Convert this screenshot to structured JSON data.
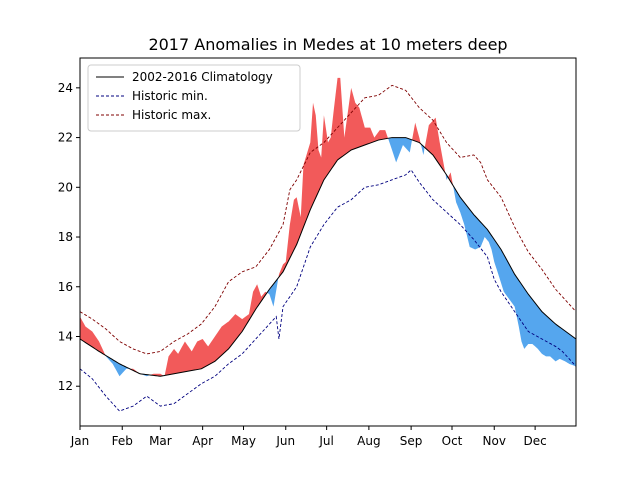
{
  "chart_data": {
    "type": "area",
    "title": "2017 Anomalies in Medes at 10 meters deep",
    "xlabel": "",
    "ylabel": "",
    "x_unit": "day of year",
    "xlim": [
      1,
      365
    ],
    "ylim": [
      10.4,
      25.2
    ],
    "x_ticks": [
      {
        "label": "Jan",
        "day": 1
      },
      {
        "label": "Feb",
        "day": 32
      },
      {
        "label": "Mar",
        "day": 60
      },
      {
        "label": "Apr",
        "day": 91
      },
      {
        "label": "May",
        "day": 121
      },
      {
        "label": "Jun",
        "day": 152
      },
      {
        "label": "Jul",
        "day": 182
      },
      {
        "label": "Aug",
        "day": 213
      },
      {
        "label": "Sep",
        "day": 244
      },
      {
        "label": "Oct",
        "day": 274
      },
      {
        "label": "Nov",
        "day": 305
      },
      {
        "label": "Dec",
        "day": 335
      }
    ],
    "y_ticks": [
      12,
      14,
      16,
      18,
      20,
      22,
      24
    ],
    "legend": {
      "position": "top-left",
      "entries": [
        {
          "label": "2002-2016 Climatology",
          "color": "#000000",
          "dash": "solid"
        },
        {
          "label": "Historic min.",
          "color": "#00007f",
          "dash": "dashed"
        },
        {
          "label": "Historic max.",
          "color": "#7f0000",
          "dash": "dashed"
        }
      ]
    },
    "fill_colors": {
      "above_climatology": "#f25a5a",
      "below_climatology": "#55a6ee"
    },
    "grid": false,
    "series": [
      {
        "name": "2002-2016 Climatology",
        "points": [
          [
            1,
            13.9
          ],
          [
            15,
            13.4
          ],
          [
            30,
            12.9
          ],
          [
            45,
            12.5
          ],
          [
            60,
            12.4
          ],
          [
            70,
            12.5
          ],
          [
            80,
            12.6
          ],
          [
            90,
            12.7
          ],
          [
            100,
            13.0
          ],
          [
            110,
            13.5
          ],
          [
            120,
            14.2
          ],
          [
            130,
            15.1
          ],
          [
            140,
            15.9
          ],
          [
            150,
            16.6
          ],
          [
            160,
            17.7
          ],
          [
            170,
            19.1
          ],
          [
            180,
            20.3
          ],
          [
            190,
            21.1
          ],
          [
            200,
            21.5
          ],
          [
            210,
            21.7
          ],
          [
            220,
            21.9
          ],
          [
            230,
            22.0
          ],
          [
            240,
            22.0
          ],
          [
            250,
            21.8
          ],
          [
            260,
            21.3
          ],
          [
            270,
            20.5
          ],
          [
            280,
            19.6
          ],
          [
            290,
            18.9
          ],
          [
            300,
            18.3
          ],
          [
            310,
            17.5
          ],
          [
            320,
            16.5
          ],
          [
            330,
            15.7
          ],
          [
            340,
            15.0
          ],
          [
            350,
            14.5
          ],
          [
            365,
            13.9
          ]
        ]
      },
      {
        "name": "Historic min.",
        "points": [
          [
            1,
            12.7
          ],
          [
            10,
            12.3
          ],
          [
            20,
            11.6
          ],
          [
            30,
            11.0
          ],
          [
            40,
            11.2
          ],
          [
            50,
            11.6
          ],
          [
            55,
            11.4
          ],
          [
            60,
            11.2
          ],
          [
            70,
            11.3
          ],
          [
            80,
            11.7
          ],
          [
            90,
            12.1
          ],
          [
            100,
            12.4
          ],
          [
            110,
            12.9
          ],
          [
            120,
            13.3
          ],
          [
            130,
            13.9
          ],
          [
            140,
            14.5
          ],
          [
            145,
            14.8
          ],
          [
            147,
            13.9
          ],
          [
            150,
            15.2
          ],
          [
            160,
            16.0
          ],
          [
            170,
            17.6
          ],
          [
            180,
            18.5
          ],
          [
            190,
            19.2
          ],
          [
            200,
            19.5
          ],
          [
            210,
            20.0
          ],
          [
            220,
            20.1
          ],
          [
            230,
            20.3
          ],
          [
            240,
            20.5
          ],
          [
            244,
            20.7
          ],
          [
            250,
            20.2
          ],
          [
            260,
            19.5
          ],
          [
            270,
            19.0
          ],
          [
            280,
            18.5
          ],
          [
            290,
            17.9
          ],
          [
            300,
            17.2
          ],
          [
            305,
            16.3
          ],
          [
            310,
            15.8
          ],
          [
            320,
            15.0
          ],
          [
            330,
            14.2
          ],
          [
            340,
            13.9
          ],
          [
            350,
            13.6
          ],
          [
            355,
            13.4
          ],
          [
            365,
            12.8
          ]
        ]
      },
      {
        "name": "Historic max.",
        "points": [
          [
            1,
            15.0
          ],
          [
            10,
            14.7
          ],
          [
            20,
            14.3
          ],
          [
            30,
            13.8
          ],
          [
            40,
            13.5
          ],
          [
            50,
            13.3
          ],
          [
            60,
            13.4
          ],
          [
            70,
            13.8
          ],
          [
            80,
            14.1
          ],
          [
            90,
            14.5
          ],
          [
            100,
            15.2
          ],
          [
            110,
            16.2
          ],
          [
            120,
            16.6
          ],
          [
            130,
            16.8
          ],
          [
            140,
            17.5
          ],
          [
            150,
            18.5
          ],
          [
            155,
            19.9
          ],
          [
            160,
            20.3
          ],
          [
            170,
            21.4
          ],
          [
            180,
            21.8
          ],
          [
            190,
            22.4
          ],
          [
            200,
            23.0
          ],
          [
            210,
            23.6
          ],
          [
            220,
            23.7
          ],
          [
            230,
            24.1
          ],
          [
            240,
            23.9
          ],
          [
            250,
            23.2
          ],
          [
            260,
            22.7
          ],
          [
            270,
            21.8
          ],
          [
            280,
            21.2
          ],
          [
            290,
            21.3
          ],
          [
            295,
            21.0
          ],
          [
            300,
            20.3
          ],
          [
            310,
            19.6
          ],
          [
            320,
            18.4
          ],
          [
            330,
            17.4
          ],
          [
            340,
            16.7
          ],
          [
            350,
            15.9
          ],
          [
            365,
            15.0
          ]
        ]
      },
      {
        "name": "2017",
        "points": [
          [
            1,
            14.8
          ],
          [
            5,
            14.4
          ],
          [
            10,
            14.2
          ],
          [
            15,
            13.8
          ],
          [
            20,
            13.2
          ],
          [
            25,
            12.9
          ],
          [
            28,
            12.6
          ],
          [
            30,
            12.4
          ],
          [
            35,
            12.7
          ],
          [
            40,
            12.7
          ],
          [
            45,
            12.5
          ],
          [
            50,
            12.4
          ],
          [
            55,
            12.5
          ],
          [
            60,
            12.5
          ],
          [
            63,
            12.4
          ],
          [
            66,
            13.2
          ],
          [
            70,
            13.5
          ],
          [
            73,
            13.3
          ],
          [
            78,
            13.8
          ],
          [
            83,
            13.4
          ],
          [
            87,
            13.8
          ],
          [
            91,
            13.9
          ],
          [
            95,
            13.6
          ],
          [
            100,
            14.0
          ],
          [
            105,
            14.4
          ],
          [
            110,
            14.6
          ],
          [
            115,
            14.9
          ],
          [
            120,
            14.7
          ],
          [
            125,
            14.9
          ],
          [
            128,
            15.8
          ],
          [
            131,
            16.1
          ],
          [
            134,
            15.6
          ],
          [
            137,
            15.8
          ],
          [
            140,
            15.7
          ],
          [
            143,
            15.2
          ],
          [
            147,
            16.5
          ],
          [
            150,
            16.9
          ],
          [
            152,
            17.0
          ],
          [
            155,
            18.5
          ],
          [
            158,
            19.5
          ],
          [
            160,
            19.6
          ],
          [
            163,
            18.8
          ],
          [
            165,
            20.9
          ],
          [
            170,
            21.8
          ],
          [
            172,
            23.4
          ],
          [
            174,
            22.9
          ],
          [
            176,
            21.5
          ],
          [
            178,
            21.2
          ],
          [
            180,
            22.9
          ],
          [
            183,
            21.8
          ],
          [
            185,
            22.0
          ],
          [
            187,
            23.0
          ],
          [
            190,
            24.4
          ],
          [
            192,
            24.4
          ],
          [
            195,
            22.0
          ],
          [
            197,
            22.8
          ],
          [
            200,
            24.0
          ],
          [
            203,
            23.4
          ],
          [
            206,
            23.2
          ],
          [
            210,
            22.4
          ],
          [
            214,
            22.4
          ],
          [
            217,
            22.0
          ],
          [
            221,
            22.3
          ],
          [
            225,
            22.3
          ],
          [
            230,
            21.5
          ],
          [
            233,
            21.0
          ],
          [
            238,
            21.7
          ],
          [
            243,
            21.4
          ],
          [
            247,
            22.6
          ],
          [
            250,
            22.0
          ],
          [
            253,
            21.3
          ],
          [
            257,
            22.5
          ],
          [
            262,
            22.8
          ],
          [
            265,
            21.8
          ],
          [
            270,
            20.3
          ],
          [
            273,
            20.6
          ],
          [
            277,
            19.4
          ],
          [
            280,
            19.0
          ],
          [
            283,
            18.5
          ],
          [
            287,
            17.6
          ],
          [
            291,
            17.5
          ],
          [
            295,
            17.6
          ],
          [
            298,
            18.0
          ],
          [
            301,
            17.8
          ],
          [
            303,
            17.5
          ],
          [
            305,
            17.0
          ],
          [
            308,
            16.5
          ],
          [
            312,
            15.8
          ],
          [
            316,
            15.5
          ],
          [
            320,
            15.2
          ],
          [
            323,
            14.4
          ],
          [
            325,
            13.8
          ],
          [
            327,
            13.5
          ],
          [
            330,
            13.7
          ],
          [
            333,
            13.7
          ],
          [
            337,
            13.5
          ],
          [
            340,
            13.3
          ],
          [
            343,
            13.2
          ],
          [
            346,
            13.2
          ],
          [
            350,
            13.0
          ],
          [
            353,
            13.1
          ],
          [
            357,
            13.0
          ],
          [
            360,
            12.9
          ],
          [
            365,
            12.8
          ]
        ]
      }
    ]
  }
}
